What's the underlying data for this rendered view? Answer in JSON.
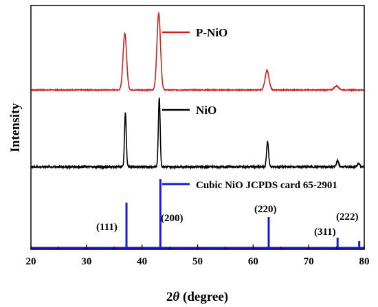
{
  "chart_data": {
    "type": "line",
    "title": "",
    "xlabel_prefix": "2",
    "xlabel_symbol": "θ",
    "xlabel_suffix": " (degree)",
    "ylabel": "Intensity",
    "xlim": [
      20,
      80
    ],
    "x_ticks": [
      20,
      30,
      40,
      50,
      60,
      70,
      80
    ],
    "grid": false,
    "legend_placement": "inline-right-of-series",
    "series": [
      {
        "name": "P-NiO",
        "color": "#cc2222",
        "baseline_offset": 2.0,
        "noise": 0.006,
        "peaks": [
          {
            "x": 36.9,
            "height": 0.72,
            "width": 0.32
          },
          {
            "x": 43.0,
            "height": 0.98,
            "width": 0.32
          },
          {
            "x": 62.5,
            "height": 0.25,
            "width": 0.35
          },
          {
            "x": 75.0,
            "height": 0.05,
            "width": 0.4
          }
        ]
      },
      {
        "name": "NiO",
        "color": "#000000",
        "baseline_offset": 1.0,
        "noise": 0.012,
        "peaks": [
          {
            "x": 37.0,
            "height": 0.68,
            "width": 0.16
          },
          {
            "x": 43.1,
            "height": 0.88,
            "width": 0.16
          },
          {
            "x": 62.6,
            "height": 0.32,
            "width": 0.18
          },
          {
            "x": 75.2,
            "height": 0.08,
            "width": 0.2
          },
          {
            "x": 79.0,
            "height": 0.05,
            "width": 0.2
          }
        ]
      }
    ],
    "reference": {
      "name": "Cubic NiO JCPDS card 65-2901",
      "color": "#1a1ad6",
      "lines": [
        {
          "x": 37.2,
          "intensity": 0.66,
          "label": "(111)"
        },
        {
          "x": 43.3,
          "intensity": 1.0,
          "label": "(200)"
        },
        {
          "x": 62.8,
          "intensity": 0.45,
          "label": "(220)"
        },
        {
          "x": 75.2,
          "intensity": 0.15,
          "label": "(311)"
        },
        {
          "x": 79.1,
          "intensity": 0.1,
          "label": "(222)"
        }
      ]
    }
  }
}
